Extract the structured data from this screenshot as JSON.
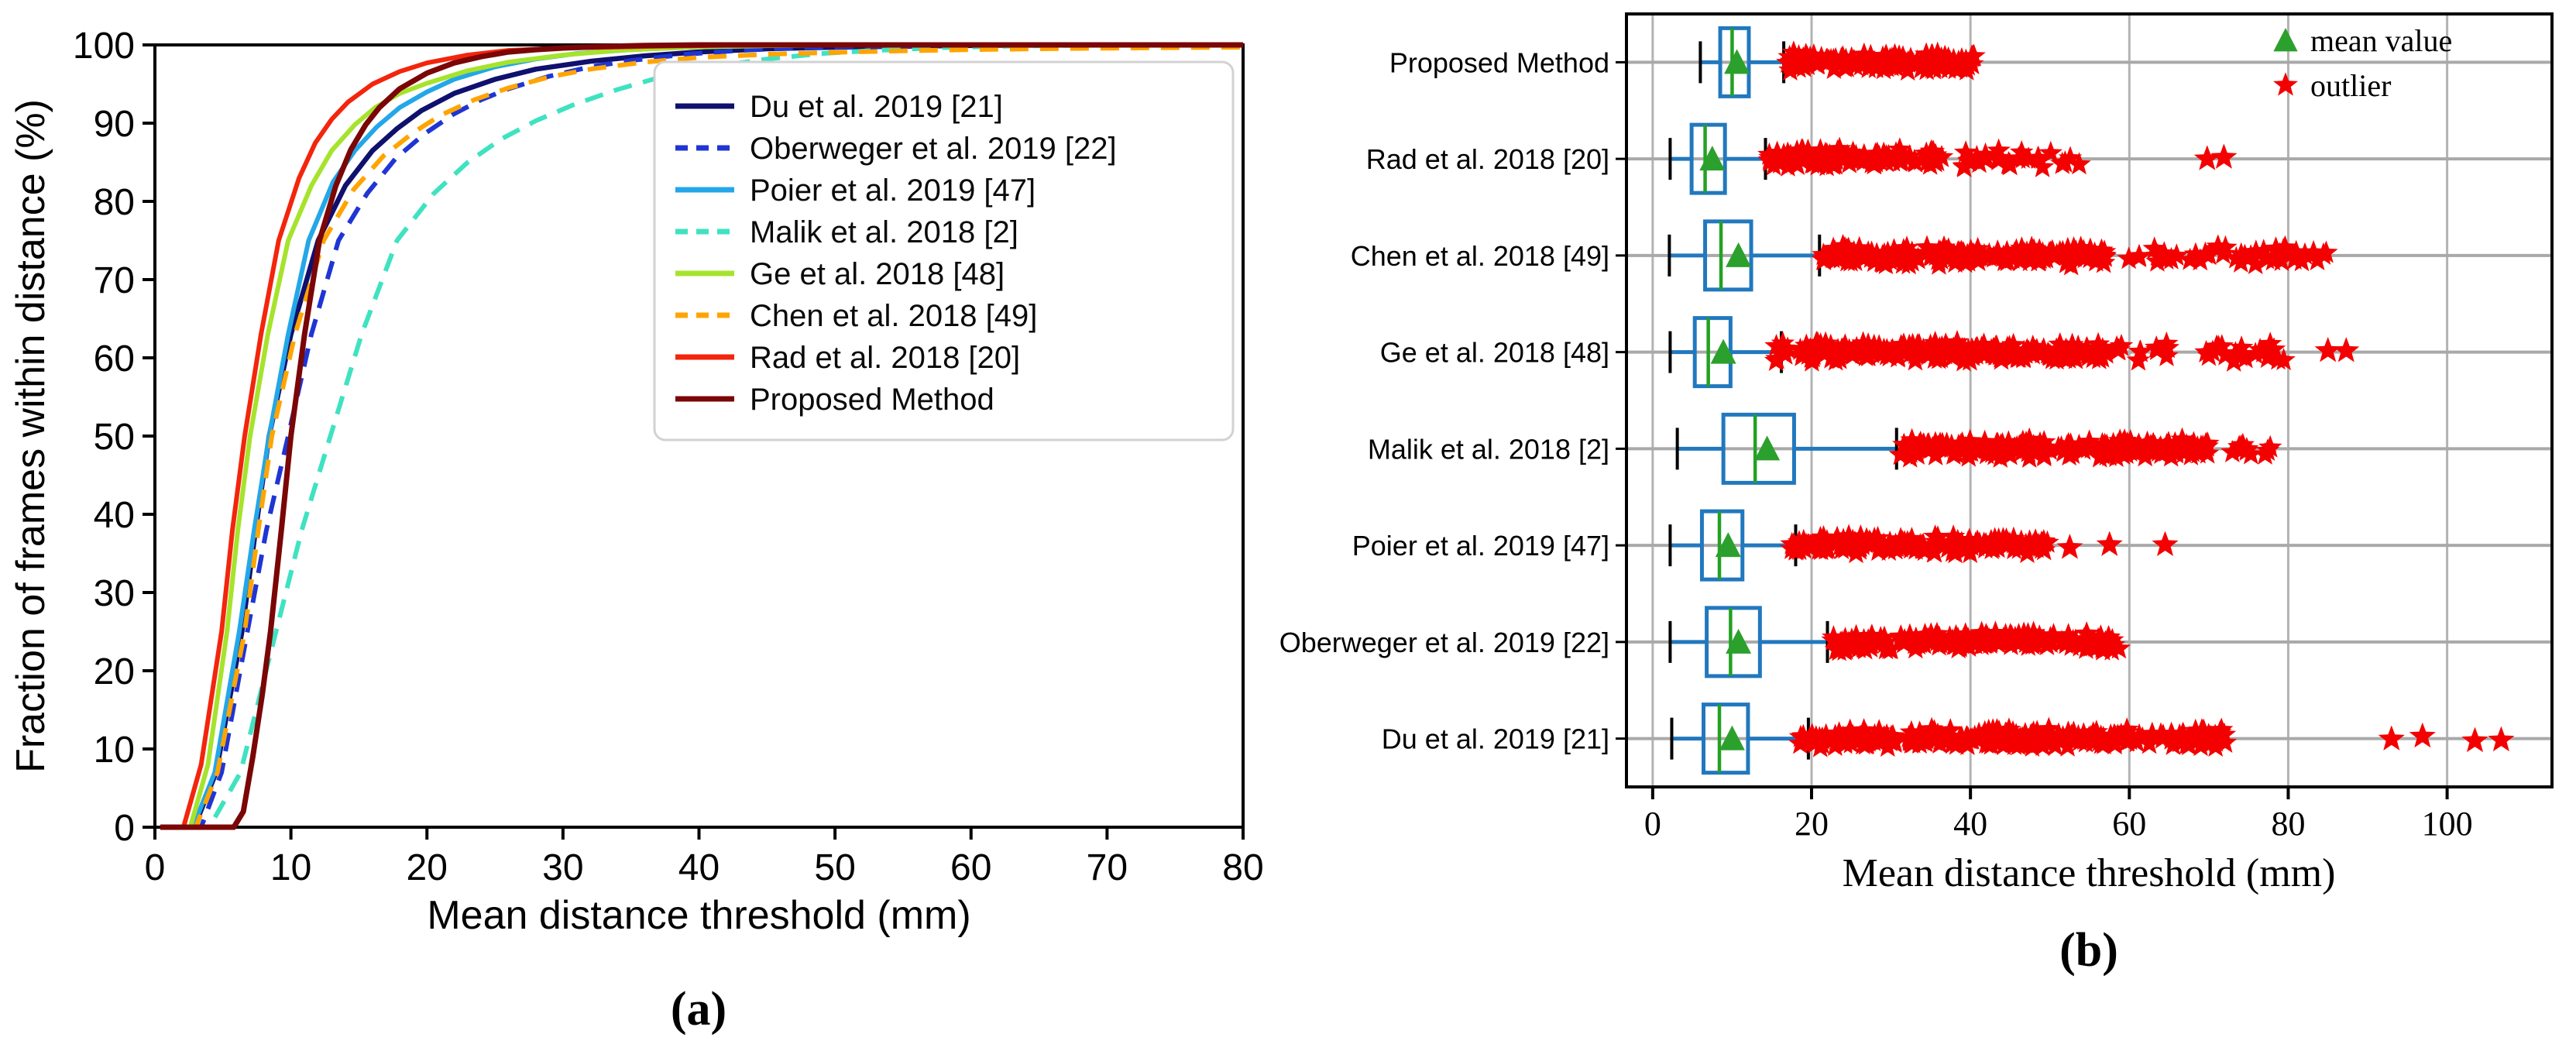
{
  "figure": {
    "caption_a": "(a)",
    "caption_b": "(b)"
  },
  "chart_data": [
    {
      "id": "a",
      "type": "line",
      "xlabel": "Mean distance threshold (mm)",
      "ylabel": "Fraction of frames within distance (%)",
      "xlim": [
        0,
        80
      ],
      "ylim": [
        0,
        100
      ],
      "xticks": [
        0,
        10,
        20,
        30,
        40,
        50,
        60,
        70,
        80
      ],
      "yticks": [
        0,
        10,
        20,
        30,
        40,
        50,
        60,
        70,
        80,
        90,
        100
      ],
      "grid": false,
      "legend_position": "center-right",
      "series": [
        {
          "name": "Du et al. 2019 [21]",
          "color": "#10106e",
          "style": "solid",
          "width": 6.5,
          "points": [
            [
              0.4,
              0
            ],
            [
              2.9,
              0
            ],
            [
              4.5,
              7
            ],
            [
              6.4,
              25
            ],
            [
              7.4,
              38
            ],
            [
              8.4,
              50
            ],
            [
              10,
              63
            ],
            [
              12,
              75
            ],
            [
              14,
              82
            ],
            [
              16,
              86.5
            ],
            [
              17.8,
              89.3
            ],
            [
              19.6,
              91.6
            ],
            [
              22,
              93.8
            ],
            [
              25,
              95.6
            ],
            [
              28,
              96.9
            ],
            [
              32,
              97.9
            ],
            [
              36,
              98.6
            ],
            [
              40,
              99.1
            ],
            [
              45,
              99.5
            ],
            [
              50,
              99.7
            ],
            [
              56,
              99.85
            ],
            [
              62,
              99.95
            ],
            [
              70,
              100
            ],
            [
              80,
              100
            ]
          ]
        },
        {
          "name": "Oberweger et al. 2019 [22]",
          "color": "#1f35d4",
          "style": "dashed",
          "width": 6,
          "points": [
            [
              0.4,
              0
            ],
            [
              3.4,
              0
            ],
            [
              4.9,
              7
            ],
            [
              6.8,
              25
            ],
            [
              8.2,
              38
            ],
            [
              9.8,
              50
            ],
            [
              11.5,
              63
            ],
            [
              13.5,
              75
            ],
            [
              15.6,
              81
            ],
            [
              17.7,
              85.5
            ],
            [
              19.8,
              88.6
            ],
            [
              22,
              91.2
            ],
            [
              24,
              93
            ],
            [
              26,
              94.4
            ],
            [
              29,
              96
            ],
            [
              32,
              97.2
            ],
            [
              35,
              98
            ],
            [
              39,
              98.8
            ],
            [
              43,
              99.3
            ],
            [
              47,
              99.6
            ],
            [
              52,
              99.8
            ],
            [
              58,
              99.95
            ],
            [
              64,
              100
            ],
            [
              80,
              100
            ]
          ]
        },
        {
          "name": "Poier et al. 2019 [47]",
          "color": "#23a7e8",
          "style": "solid",
          "width": 6,
          "points": [
            [
              0.4,
              0
            ],
            [
              2.8,
              0
            ],
            [
              4.4,
              7
            ],
            [
              6.2,
              25
            ],
            [
              7.3,
              38
            ],
            [
              8.4,
              50
            ],
            [
              9.8,
              63
            ],
            [
              11.3,
              75
            ],
            [
              13.1,
              82.5
            ],
            [
              14.7,
              86.5
            ],
            [
              16.3,
              89.5
            ],
            [
              18,
              92
            ],
            [
              20,
              94
            ],
            [
              22,
              95.6
            ],
            [
              25,
              97.2
            ],
            [
              28,
              98.2
            ],
            [
              31,
              98.9
            ],
            [
              35,
              99.4
            ],
            [
              40,
              99.75
            ],
            [
              45,
              99.9
            ],
            [
              52,
              100
            ],
            [
              80,
              100
            ]
          ]
        },
        {
          "name": "Malik et al. 2018 [2]",
          "color": "#3fe2c1",
          "style": "dashed",
          "width": 6,
          "points": [
            [
              0.4,
              0
            ],
            [
              4,
              0
            ],
            [
              6.3,
              7
            ],
            [
              8.9,
              25
            ],
            [
              10.8,
              38
            ],
            [
              12.9,
              50
            ],
            [
              15.2,
              63
            ],
            [
              17.8,
              75
            ],
            [
              20.5,
              81
            ],
            [
              23,
              85
            ],
            [
              25.5,
              88
            ],
            [
              28,
              90.3
            ],
            [
              30.7,
              92.3
            ],
            [
              34,
              94.3
            ],
            [
              37,
              95.8
            ],
            [
              41,
              97.2
            ],
            [
              45,
              98.2
            ],
            [
              49,
              98.9
            ],
            [
              53,
              99.3
            ],
            [
              58,
              99.65
            ],
            [
              63,
              99.85
            ],
            [
              68,
              99.95
            ],
            [
              74,
              100
            ],
            [
              80,
              100
            ]
          ]
        },
        {
          "name": "Ge et al. 2018 [48]",
          "color": "#a6e32c",
          "style": "solid",
          "width": 6,
          "points": [
            [
              0.4,
              0
            ],
            [
              2.6,
              0
            ],
            [
              3.9,
              8
            ],
            [
              5.3,
              25
            ],
            [
              6.1,
              38
            ],
            [
              7,
              50
            ],
            [
              8.3,
              63
            ],
            [
              9.8,
              75
            ],
            [
              11.5,
              82
            ],
            [
              13,
              86.5
            ],
            [
              14.7,
              89.8
            ],
            [
              16.2,
              92
            ],
            [
              18,
              93.8
            ],
            [
              20,
              95.1
            ],
            [
              23,
              96.7
            ],
            [
              26,
              97.8
            ],
            [
              30,
              98.7
            ],
            [
              34,
              99.3
            ],
            [
              39,
              99.7
            ],
            [
              45,
              99.9
            ],
            [
              52,
              100
            ],
            [
              80,
              100
            ]
          ]
        },
        {
          "name": "Chen et al. 2018 [49]",
          "color": "#ffa400",
          "style": "dashed",
          "width": 6,
          "points": [
            [
              0.4,
              0
            ],
            [
              3,
              0
            ],
            [
              4.6,
              7
            ],
            [
              6.6,
              25
            ],
            [
              7.6,
              38
            ],
            [
              8.6,
              50
            ],
            [
              10.3,
              63
            ],
            [
              12.4,
              75
            ],
            [
              14.6,
              81.5
            ],
            [
              16.8,
              85.8
            ],
            [
              19,
              88.8
            ],
            [
              21,
              91
            ],
            [
              23.5,
              93
            ],
            [
              26,
              94.5
            ],
            [
              29,
              95.9
            ],
            [
              32,
              96.9
            ],
            [
              36,
              97.8
            ],
            [
              40,
              98.4
            ],
            [
              45,
              98.8
            ],
            [
              50,
              99.05
            ],
            [
              55,
              99.25
            ],
            [
              60,
              99.4
            ],
            [
              65,
              99.5
            ],
            [
              70,
              99.58
            ],
            [
              75,
              99.65
            ],
            [
              80,
              99.7
            ]
          ]
        },
        {
          "name": "Rad et al. 2018 [20]",
          "color": "#f3250c",
          "style": "solid",
          "width": 6,
          "points": [
            [
              0.4,
              0
            ],
            [
              2.1,
              0
            ],
            [
              3.4,
              8
            ],
            [
              4.9,
              25
            ],
            [
              5.7,
              38
            ],
            [
              6.6,
              50
            ],
            [
              7.8,
              63
            ],
            [
              9.1,
              75
            ],
            [
              10.6,
              83
            ],
            [
              11.8,
              87.5
            ],
            [
              13,
              90.5
            ],
            [
              14.2,
              92.7
            ],
            [
              16,
              95
            ],
            [
              18,
              96.6
            ],
            [
              20,
              97.7
            ],
            [
              23,
              98.7
            ],
            [
              26,
              99.3
            ],
            [
              30,
              99.6
            ],
            [
              36,
              99.8
            ],
            [
              42,
              99.95
            ],
            [
              50,
              100
            ],
            [
              80,
              100
            ]
          ]
        },
        {
          "name": "Proposed Method",
          "color": "#7a0605",
          "style": "solid",
          "width": 7,
          "points": [
            [
              0.4,
              0
            ],
            [
              5.8,
              0
            ],
            [
              6.5,
              2
            ],
            [
              7.2,
              9
            ],
            [
              7.9,
              17
            ],
            [
              8.5,
              25
            ],
            [
              9.3,
              38
            ],
            [
              10,
              50
            ],
            [
              11,
              63
            ],
            [
              12.1,
              75
            ],
            [
              13.3,
              82
            ],
            [
              14.4,
              86.6
            ],
            [
              15.5,
              89.8
            ],
            [
              16.5,
              92
            ],
            [
              18,
              94.4
            ],
            [
              20,
              96.4
            ],
            [
              22,
              97.7
            ],
            [
              24,
              98.5
            ],
            [
              26,
              99.1
            ],
            [
              28,
              99.4
            ],
            [
              30,
              99.6
            ],
            [
              33,
              99.8
            ],
            [
              36,
              99.93
            ],
            [
              40,
              100
            ],
            [
              80,
              100
            ]
          ]
        }
      ]
    },
    {
      "id": "b",
      "type": "boxplot",
      "xlabel": "Mean distance threshold (mm)",
      "xlim": [
        -3.3,
        113.2
      ],
      "xticks": [
        0,
        20,
        40,
        60,
        80,
        100
      ],
      "grid": true,
      "legend": [
        {
          "label": "mean value",
          "marker": "triangle",
          "color": "#2ca02c"
        },
        {
          "label": "outlier",
          "marker": "star",
          "color": "#ff0000"
        }
      ],
      "colors": {
        "box": "#2178be",
        "median": "#23a123",
        "whisker": "#2178be",
        "cap": "#000000",
        "mean": "#2ca02c",
        "outlier": "#f40000",
        "grid": "#b3b3b3",
        "rowline": "#a9a9a9"
      },
      "rows": [
        {
          "label": "Proposed Method",
          "whisker_lo": 6.0,
          "q1": 8.5,
          "median": 10.0,
          "q3": 12.1,
          "whisker_hi": 16.5,
          "mean": 10.6,
          "outlier_bands": [
            {
              "from": 17,
              "to": 40.5,
              "density": "dense"
            }
          ],
          "outliers_isolated": []
        },
        {
          "label": "Rad et al. 2018 [20]",
          "whisker_lo": 2.2,
          "q1": 4.9,
          "median": 6.6,
          "q3": 9.1,
          "whisker_hi": 14.2,
          "mean": 7.5,
          "outlier_bands": [
            {
              "from": 14.6,
              "to": 36.5,
              "density": "dense"
            },
            {
              "from": 38.5,
              "to": 55,
              "density": "medium"
            }
          ],
          "outliers_isolated": [
            69.8,
            71.9
          ]
        },
        {
          "label": "Chen et al. 2018 [49]",
          "whisker_lo": 2.1,
          "q1": 6.6,
          "median": 8.6,
          "q3": 12.4,
          "whisker_hi": 21.0,
          "mean": 10.8,
          "outlier_bands": [
            {
              "from": 21.5,
              "to": 57,
              "density": "dense"
            },
            {
              "from": 59,
              "to": 85,
              "density": "medium"
            }
          ],
          "outliers_isolated": []
        },
        {
          "label": "Ge et al. 2018 [48]",
          "whisker_lo": 2.2,
          "q1": 5.3,
          "median": 7.0,
          "q3": 9.8,
          "whisker_hi": 16.2,
          "mean": 8.9,
          "outlier_bands": [
            {
              "from": 15,
              "to": 59,
              "density": "dense"
            },
            {
              "from": 61,
              "to": 65.5,
              "density": "medium"
            },
            {
              "from": 68,
              "to": 80.5,
              "density": "medium"
            }
          ],
          "outliers_isolated": [
            85,
            87.3
          ]
        },
        {
          "label": "Malik et al. 2018 [2]",
          "whisker_lo": 3.1,
          "q1": 8.9,
          "median": 12.9,
          "q3": 17.8,
          "whisker_hi": 30.7,
          "mean": 14.4,
          "outlier_bands": [
            {
              "from": 31,
              "to": 70,
              "density": "dense"
            },
            {
              "from": 71.8,
              "to": 78,
              "density": "medium"
            }
          ],
          "outliers_isolated": []
        },
        {
          "label": "Poier et al. 2019 [47]",
          "whisker_lo": 2.2,
          "q1": 6.2,
          "median": 8.4,
          "q3": 11.3,
          "whisker_hi": 18.0,
          "mean": 9.5,
          "outlier_bands": [
            {
              "from": 17.5,
              "to": 50,
              "density": "dense"
            }
          ],
          "outliers_isolated": [
            52.5,
            57.5,
            64.5
          ]
        },
        {
          "label": "Oberweger et al. 2019 [22]",
          "whisker_lo": 2.2,
          "q1": 6.8,
          "median": 9.8,
          "q3": 13.5,
          "whisker_hi": 22.0,
          "mean": 10.8,
          "outlier_bands": [
            {
              "from": 22.5,
              "to": 58.8,
              "density": "dense"
            }
          ],
          "outliers_isolated": []
        },
        {
          "label": "Du et al. 2019 [21]",
          "whisker_lo": 2.4,
          "q1": 6.4,
          "median": 8.4,
          "q3": 12.0,
          "whisker_hi": 19.6,
          "mean": 10.0,
          "outlier_bands": [
            {
              "from": 18.5,
              "to": 72.5,
              "density": "dense"
            }
          ],
          "outliers_isolated": [
            93,
            96.9,
            103.5,
            106.8
          ]
        }
      ]
    }
  ]
}
